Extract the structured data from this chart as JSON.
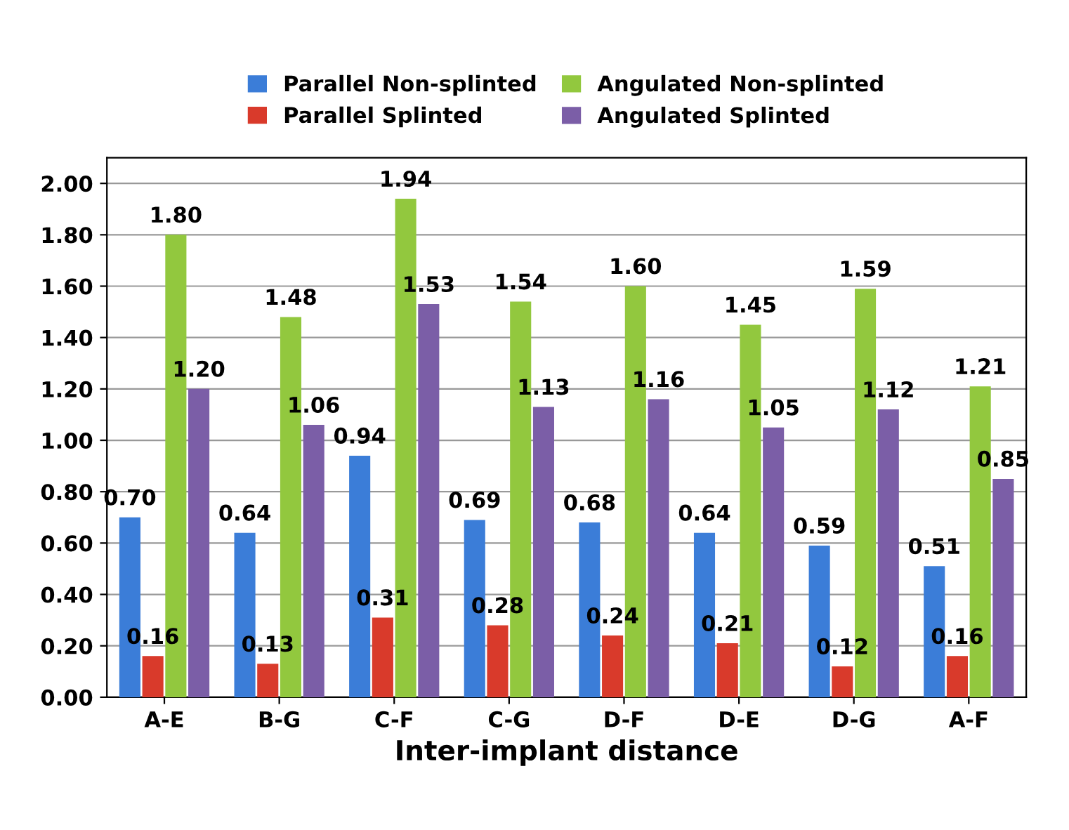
{
  "chart_data": {
    "type": "bar",
    "xlabel": "Inter-implant distance",
    "categories": [
      "A-E",
      "B-G",
      "C-F",
      "C-G",
      "D-F",
      "D-E",
      "D-G",
      "A-F"
    ],
    "series": [
      {
        "name": "Parallel Non-splinted",
        "color": "#3b7dd8",
        "values": [
          0.7,
          0.64,
          0.94,
          0.69,
          0.68,
          0.64,
          0.59,
          0.51
        ],
        "value_labels": [
          "0.70",
          "0.64",
          "0.94",
          "0.69",
          "0.68",
          "0.64",
          "0.59",
          "0.51"
        ]
      },
      {
        "name": "Parallel Splinted",
        "color": "#d93a2b",
        "values": [
          0.16,
          0.13,
          0.31,
          0.28,
          0.24,
          0.21,
          0.12,
          0.16
        ],
        "value_labels": [
          "0.16",
          "0.13",
          "0.31",
          "0.28",
          "0.24",
          "0.21",
          "0.12",
          "0.16"
        ]
      },
      {
        "name": "Angulated Non-splinted",
        "color": "#92c83e",
        "values": [
          1.8,
          1.48,
          1.94,
          1.54,
          1.6,
          1.45,
          1.59,
          1.21
        ],
        "value_labels": [
          "1.80",
          "1.48",
          "1.94",
          "1.54",
          "1.60",
          "1.45",
          "1.59",
          "1.21"
        ]
      },
      {
        "name": "Angulated Splinted",
        "color": "#7b5ea7",
        "values": [
          1.2,
          1.06,
          1.53,
          1.13,
          1.16,
          1.05,
          1.12,
          0.85
        ],
        "value_labels": [
          "1.20",
          "1.06",
          "1.53",
          "1.13",
          "1.16",
          "1.05",
          "1.12",
          "0.85"
        ]
      }
    ],
    "ylim": [
      0,
      2.1
    ],
    "yticks": [
      {
        "value": 0,
        "label": "0.00"
      },
      {
        "value": 0.2,
        "label": "0.20"
      },
      {
        "value": 0.4,
        "label": "0.40"
      },
      {
        "value": 0.6,
        "label": "0.60"
      },
      {
        "value": 0.8,
        "label": "0.80"
      },
      {
        "value": 1.0,
        "label": "1.00"
      },
      {
        "value": 1.2,
        "label": "1.20"
      },
      {
        "value": 1.4,
        "label": "1.40"
      },
      {
        "value": 1.6,
        "label": "1.60"
      },
      {
        "value": 1.8,
        "label": "1.80"
      },
      {
        "value": 2.0,
        "label": "2.00"
      }
    ],
    "grid": "y",
    "legend": "top"
  }
}
